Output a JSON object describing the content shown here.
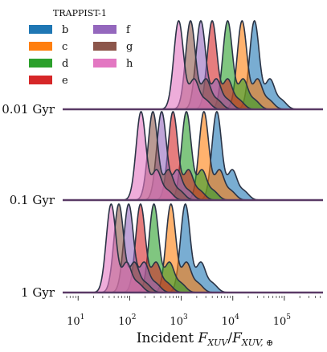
{
  "chart_data": {
    "type": "area",
    "title": "",
    "legend": {
      "title": "TRAPPIST-1",
      "placement": "top-left",
      "columns": [
        [
          "b",
          "c",
          "d",
          "e"
        ],
        [
          "f",
          "g",
          "h"
        ]
      ]
    },
    "series": [
      {
        "name": "b",
        "color": "#1f77b4"
      },
      {
        "name": "c",
        "color": "#ff7f0e"
      },
      {
        "name": "d",
        "color": "#2ca02c"
      },
      {
        "name": "e",
        "color": "#d62728"
      },
      {
        "name": "f",
        "color": "#9467bd"
      },
      {
        "name": "g",
        "color": "#8c564b"
      },
      {
        "name": "h",
        "color": "#e377c2"
      }
    ],
    "rows": [
      {
        "label": "0.01 Gyr",
        "peaks_log10": [
          4.42,
          4.18,
          3.9,
          3.6,
          3.38,
          3.18,
          2.95
        ]
      },
      {
        "label": "0.1 Gyr",
        "peaks_log10": [
          3.69,
          3.44,
          3.1,
          2.84,
          2.62,
          2.45,
          2.22
        ]
      },
      {
        "label": "1 Gyr",
        "peaks_log10": [
          3.08,
          2.8,
          2.47,
          2.21,
          1.98,
          1.79,
          1.64
        ]
      }
    ],
    "x": {
      "scale": "log",
      "lim_log10": [
        0.7,
        5.75
      ],
      "ticks": [
        {
          "base": "10",
          "exp": "1",
          "log10": 1
        },
        {
          "base": "10",
          "exp": "2",
          "log10": 2
        },
        {
          "base": "10",
          "exp": "3",
          "log10": 3
        },
        {
          "base": "10",
          "exp": "4",
          "log10": 4
        },
        {
          "base": "10",
          "exp": "5",
          "log10": 5
        }
      ]
    },
    "xlabel": {
      "prefix": "Incident ",
      "var": "F",
      "sub1": "XUV",
      "sep": "/",
      "sub2": "XUV, ⊕"
    },
    "grid": false
  }
}
